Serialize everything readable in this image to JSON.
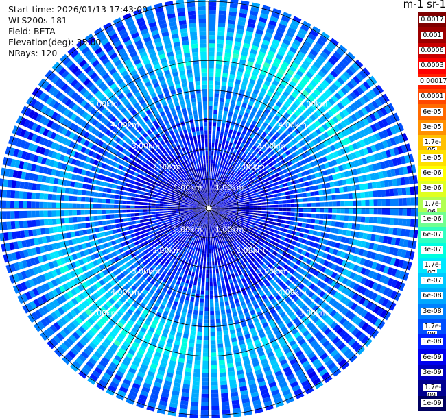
{
  "header": {
    "start_time": "Start time: 2026/01/13 17:43:00",
    "instrument": "WLS200s-181",
    "field": "Field: BETA",
    "elevation": "Elevation(deg): 35.00",
    "nrays": "NRays: 120"
  },
  "colorbar": {
    "unit_label": "m-1 sr-1",
    "ticks": [
      "0.0017",
      "0.001",
      "0.0006",
      "0.0003",
      "0.00017",
      "0.0001",
      "6e-05",
      "3e-05",
      "1.7e-05",
      "1e-05",
      "6e-06",
      "3e-06",
      "1.7e-06",
      "1e-06",
      "6e-07",
      "3e-07",
      "1.7e-07",
      "1e-07",
      "6e-08",
      "3e-08",
      "1.7e-08",
      "1e-08",
      "6e-09",
      "3e-09",
      "1.7e-09",
      "1e-09"
    ],
    "colors": [
      "#7f0000",
      "#9c0000",
      "#c80000",
      "#ff0000",
      "#ff2000",
      "#ff4800",
      "#ff6a00",
      "#ff9000",
      "#ffc000",
      "#ffe000",
      "#ffff00",
      "#e0ff20",
      "#b0ff50",
      "#70ff90",
      "#30ffc0",
      "#00ffe0",
      "#00e8ff",
      "#00c8ff",
      "#00a8ff",
      "#0080ff",
      "#0050ff",
      "#0020ff",
      "#0000ee",
      "#0000c0",
      "#00008f",
      "#000060"
    ]
  },
  "chart_data": {
    "type": "heatmap",
    "projection": "polar (PPI scan)",
    "nrays": 120,
    "range_unit": "km",
    "range_rings": [
      1.0,
      2.0,
      3.0,
      4.0,
      5.0
    ],
    "range_ring_labels": [
      "1.00km",
      "2.00km",
      "3.00km",
      "4.00km",
      "5.00km"
    ],
    "max_range_km": 7.0,
    "field": "BETA",
    "elevation_deg": 35.0,
    "colorscale": "jet (log)",
    "color_range": [
      1e-09,
      0.0017
    ],
    "range_profile": [
      {
        "range_km": 0.5,
        "value": 3e-09
      },
      {
        "range_km": 1.5,
        "value": 6e-09
      },
      {
        "range_km": 2.5,
        "value": 1e-08
      },
      {
        "range_km": 3.5,
        "value": 3e-08
      },
      {
        "range_km": 4.5,
        "value": 6e-08
      },
      {
        "range_km": 5.3,
        "value": 1e-07
      },
      {
        "range_km": 6.0,
        "value": 3e-08
      },
      {
        "range_km": 6.7,
        "value": 2e-08
      }
    ],
    "grid": true
  }
}
